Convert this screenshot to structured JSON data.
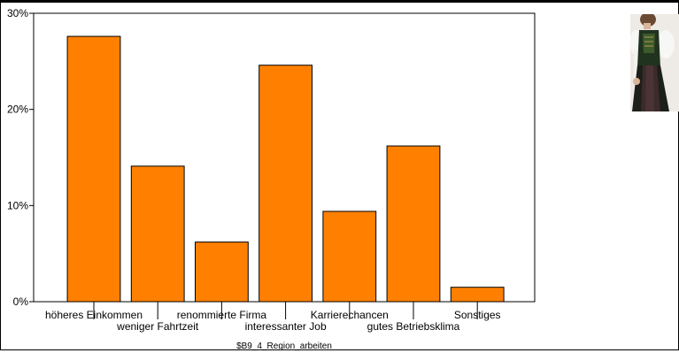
{
  "chart_data": {
    "type": "bar",
    "title": "",
    "xlabel": "$B9_4_Region_arbeiten",
    "ylabel": "",
    "categories": [
      "höheres Einkommen",
      "weniger Fahrtzeit",
      "renommierte Firma",
      "interessanter Job",
      "Karrierechancen",
      "gutes Betriebsklima",
      "Sonstiges"
    ],
    "values": [
      27.6,
      14.1,
      6.2,
      24.6,
      9.4,
      16.2,
      1.5
    ],
    "yticks": [
      "0%",
      "10%",
      "20%",
      "30%"
    ],
    "ylim": [
      0,
      30
    ],
    "grid": false,
    "colors": {
      "bar": "#ff8000",
      "outline": "#000000"
    }
  },
  "photo": {
    "icon": "woman-in-dirndl-photo"
  }
}
